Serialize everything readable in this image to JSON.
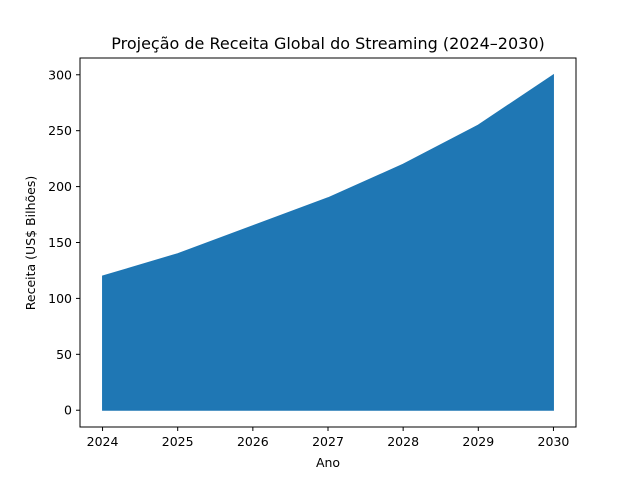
{
  "chart_data": {
    "type": "area",
    "title": "Projeção de Receita Global do Streaming (2024–2030)",
    "xlabel": "Ano",
    "ylabel": "Receita (US$ Bilhões)",
    "x": [
      2024,
      2025,
      2026,
      2027,
      2028,
      2029,
      2030
    ],
    "series": [
      {
        "values": [
          120,
          140,
          165,
          190,
          220,
          255,
          300
        ],
        "color": "#1f77b4"
      }
    ],
    "xlim": [
      2023.7,
      2030.3
    ],
    "ylim": [
      -15,
      315
    ],
    "xticks": [
      2024,
      2025,
      2026,
      2027,
      2028,
      2029,
      2030
    ],
    "yticks": [
      0,
      50,
      100,
      150,
      200,
      250,
      300
    ],
    "grid": false,
    "legend": false
  }
}
